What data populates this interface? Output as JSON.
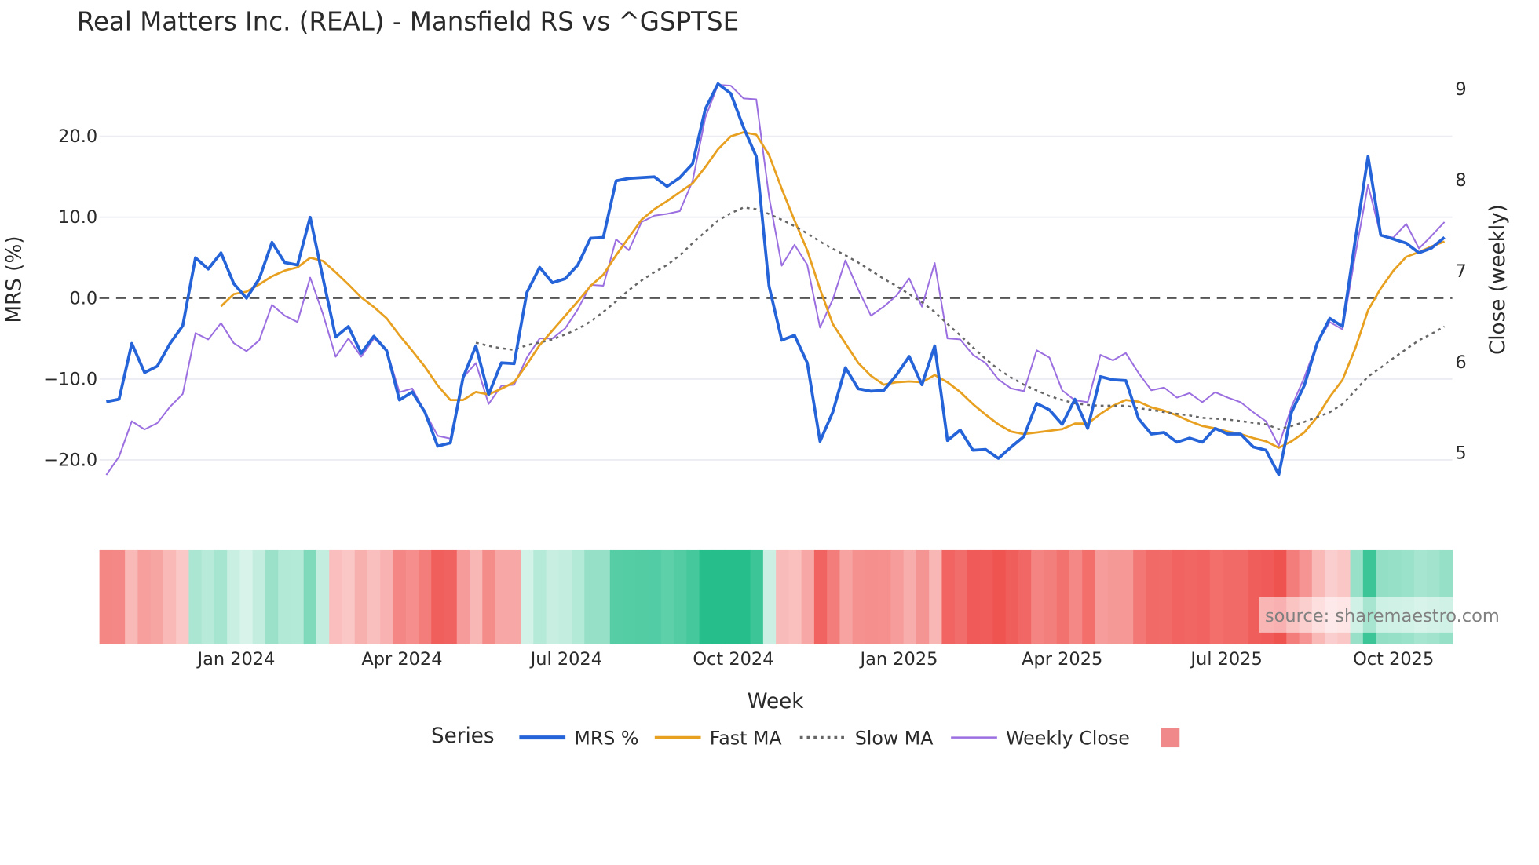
{
  "chart_data": {
    "type": "line",
    "title": "Real Matters Inc. (REAL) - Mansfield RS vs ^GSPTSE",
    "xlabel": "Week",
    "ylabel": "MRS (%)",
    "y2label": "Close (weekly)",
    "ylim": [
      -26,
      29
    ],
    "y2lim": [
      4.55,
      9.52
    ],
    "yticks": [
      "20.0",
      "10.0",
      "0.0",
      "−10.0",
      "−20.0"
    ],
    "ytick_values": [
      20,
      10,
      0,
      -10,
      -20
    ],
    "y2ticks": [
      "9",
      "8",
      "7",
      "6",
      "5"
    ],
    "y2tick_values": [
      9,
      8,
      7,
      6,
      5
    ],
    "xticks": [
      "Jan 2024",
      "Apr 2024",
      "Jul 2024",
      "Oct 2024",
      "Jan 2025",
      "Apr 2025",
      "Jul 2025",
      "Oct 2025"
    ],
    "xtick_weeks": [
      10.2,
      23.2,
      36.1,
      49.2,
      62.2,
      75.0,
      87.9,
      101.0
    ],
    "n_weeks": 106,
    "zero_line": 0,
    "grid": true,
    "legend_title": "Series",
    "legend_position": "bottom",
    "series": [
      {
        "name": "MRS %",
        "color": "#2563d9",
        "axis": "left",
        "start": 0,
        "values": [
          -12.8,
          -12.5,
          -5.6,
          -9.2,
          -8.4,
          -5.6,
          -3.4,
          5.0,
          3.6,
          5.6,
          1.8,
          0,
          2.4,
          6.9,
          4.4,
          4.1,
          10.0,
          2.5,
          -4.8,
          -3.5,
          -6.8,
          -4.7,
          -6.5,
          -12.6,
          -11.6,
          -14.1,
          -18.3,
          -17.9,
          -9.8,
          -5.9,
          -11.9,
          -8.0,
          -8.1,
          0.7,
          3.8,
          1.9,
          2.4,
          4.1,
          7.4,
          7.5,
          14.5,
          14.8,
          14.9,
          15.0,
          13.8,
          14.9,
          16.6,
          23.4,
          26.5,
          25.3,
          21.1,
          17.5,
          1.5,
          -5.2,
          -4.6,
          -8.0,
          -17.7,
          -14.1,
          -8.6,
          -11.2,
          -11.5,
          -11.4,
          -9.5,
          -7.2,
          -10.7,
          -5.9,
          -17.6,
          -16.3,
          -18.8,
          -18.7,
          -19.8,
          -18.4,
          -17.1,
          -13.0,
          -13.8,
          -15.6,
          -12.5,
          -16.1,
          -9.7,
          -10.1,
          -10.2,
          -14.9,
          -16.8,
          -16.6,
          -17.8,
          -17.3,
          -17.8,
          -16.1,
          -16.8,
          -16.8,
          -18.4,
          -18.8,
          -21.8,
          -14.1,
          -10.8,
          -5.6,
          -2.5,
          -3.5,
          7.2,
          17.5,
          7.8,
          7.3,
          6.8,
          5.6,
          6.2,
          7.5
        ]
      },
      {
        "name": "Fast MA",
        "color": "#e8a020",
        "axis": "left",
        "start": 9,
        "values": [
          -1.0,
          0.5,
          0.8,
          1.7,
          2.7,
          3.4,
          3.8,
          5.0,
          4.6,
          3.2,
          1.7,
          0.1,
          -1.1,
          -2.5,
          -4.6,
          -6.5,
          -8.5,
          -10.8,
          -12.6,
          -12.6,
          -11.6,
          -11.9,
          -11.2,
          -10.4,
          -8.2,
          -5.8,
          -4.0,
          -2.2,
          -0.4,
          1.5,
          2.9,
          5.3,
          7.5,
          9.7,
          11.0,
          12.0,
          13.1,
          14.2,
          16.2,
          18.4,
          20.0,
          20.5,
          20.2,
          17.7,
          13.5,
          9.6,
          5.9,
          1.1,
          -3.2,
          -5.6,
          -8.0,
          -9.6,
          -10.7,
          -10.4,
          -10.3,
          -10.4,
          -9.5,
          -10.4,
          -11.6,
          -13.1,
          -14.4,
          -15.6,
          -16.5,
          -16.8,
          -16.6,
          -16.4,
          -16.2,
          -15.5,
          -15.5,
          -14.3,
          -13.3,
          -12.6,
          -12.8,
          -13.5,
          -13.9,
          -14.5,
          -15.2,
          -15.8,
          -16.1,
          -16.5,
          -16.8,
          -17.3,
          -17.7,
          -18.5,
          -17.7,
          -16.6,
          -14.7,
          -12.2,
          -10.1,
          -6.2,
          -1.5,
          1.2,
          3.4,
          5.1,
          5.7,
          6.4,
          7.0
        ]
      },
      {
        "name": "Slow MA",
        "color": "#666666",
        "axis": "left",
        "start": 29,
        "dash": "dot",
        "values": [
          -5.5,
          -5.9,
          -6.2,
          -6.4,
          -5.8,
          -5.5,
          -5.1,
          -4.5,
          -3.8,
          -2.9,
          -1.7,
          -0.4,
          1.0,
          2.2,
          3.2,
          4.1,
          5.3,
          6.8,
          8.2,
          9.6,
          10.5,
          11.2,
          11.0,
          10.4,
          9.7,
          8.9,
          8.0,
          7.0,
          6.1,
          5.3,
          4.4,
          3.4,
          2.4,
          1.5,
          0.5,
          -0.5,
          -1.7,
          -3.2,
          -4.6,
          -6.1,
          -7.5,
          -8.8,
          -9.8,
          -10.7,
          -11.4,
          -12.1,
          -12.6,
          -13.0,
          -13.2,
          -13.3,
          -13.3,
          -13.3,
          -13.6,
          -13.8,
          -14.1,
          -14.3,
          -14.5,
          -14.8,
          -14.9,
          -15.0,
          -15.2,
          -15.4,
          -15.6,
          -16.2,
          -15.8,
          -15.3,
          -14.7,
          -14.1,
          -13.1,
          -11.4,
          -9.7,
          -8.6,
          -7.4,
          -6.3,
          -5.2,
          -4.4,
          -3.5
        ]
      },
      {
        "name": "Weekly Close",
        "color": "#9b6fe0",
        "axis": "right",
        "start": 0,
        "values": [
          4.76,
          4.96,
          5.35,
          5.26,
          5.33,
          5.51,
          5.65,
          6.32,
          6.25,
          6.43,
          6.21,
          6.12,
          6.24,
          6.63,
          6.51,
          6.44,
          6.93,
          6.53,
          6.06,
          6.26,
          6.06,
          6.26,
          6.13,
          5.67,
          5.71,
          5.45,
          5.19,
          5.16,
          5.83,
          5.99,
          5.54,
          5.74,
          5.75,
          6.05,
          6.26,
          6.26,
          6.37,
          6.58,
          6.85,
          6.84,
          7.35,
          7.23,
          7.54,
          7.61,
          7.63,
          7.66,
          7.99,
          8.69,
          9.05,
          9.04,
          8.9,
          8.89,
          7.82,
          7.06,
          7.29,
          7.07,
          6.38,
          6.69,
          7.12,
          6.8,
          6.51,
          6.61,
          6.73,
          6.92,
          6.61,
          7.09,
          6.26,
          6.25,
          6.08,
          5.99,
          5.81,
          5.71,
          5.68,
          6.13,
          6.05,
          5.69,
          5.58,
          5.56,
          6.08,
          6.02,
          6.1,
          5.88,
          5.69,
          5.72,
          5.61,
          5.66,
          5.56,
          5.67,
          5.61,
          5.56,
          5.45,
          5.35,
          5.08,
          5.51,
          5.83,
          6.21,
          6.44,
          6.36,
          7.18,
          7.95,
          7.39,
          7.37,
          7.52,
          7.25,
          7.39,
          7.54
        ]
      }
    ],
    "heat_strip_legend_color": "#f08a8a",
    "heat_colors": {
      "neg": "#ef5350",
      "pos": "#26bf8c"
    }
  },
  "watermark": "source: sharemaestro.com"
}
